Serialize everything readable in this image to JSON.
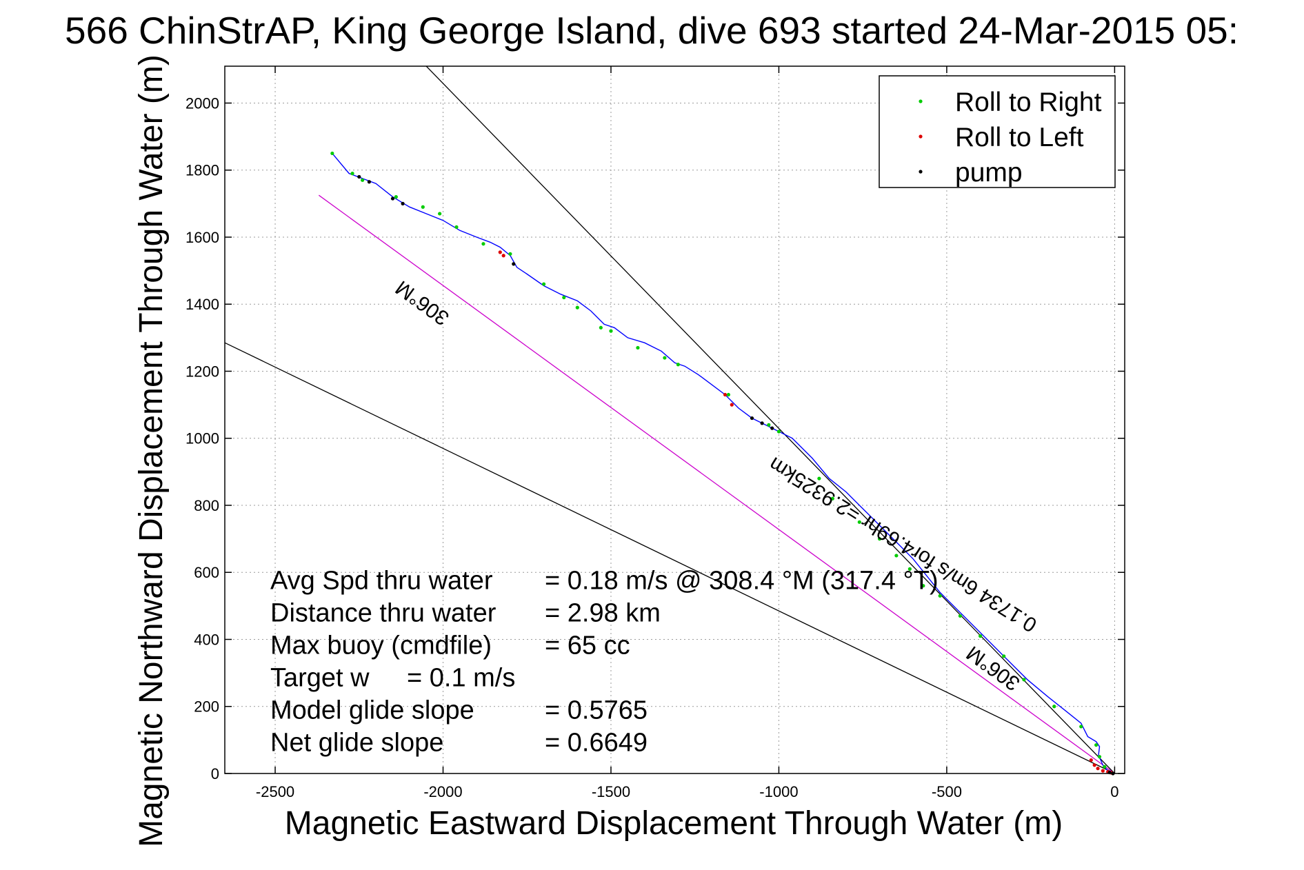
{
  "chart_data": {
    "type": "line",
    "title": "566 ChinStrAP, King George Island, dive 693 started 24-Mar-2015 05:",
    "xlabel": "Magnetic Eastward Displacement Through Water (m)",
    "ylabel": "Magnetic Northward Displacement Through Water (m)",
    "xlim": [
      -2650,
      30
    ],
    "ylim": [
      0,
      2110
    ],
    "xticks": [
      -2500,
      -2000,
      -1500,
      -1000,
      -500,
      0
    ],
    "yticks": [
      0,
      200,
      400,
      600,
      800,
      1000,
      1200,
      1400,
      1600,
      1800,
      2000
    ],
    "grid": true,
    "legend": {
      "placement": "top-right",
      "entries": [
        {
          "label": "Roll to Right",
          "color": "#00cc00"
        },
        {
          "label": "Roll to Left",
          "color": "#dd0000"
        },
        {
          "label": "pump",
          "color": "#000000"
        }
      ]
    },
    "track": {
      "name": "glider track",
      "color": "#0000ff",
      "x": [
        0,
        -20,
        -35,
        -48,
        -45,
        -55,
        -80,
        -100,
        -150,
        -200,
        -260,
        -320,
        -380,
        -420,
        -480,
        -520,
        -560,
        -600,
        -640,
        -680,
        -720,
        -760,
        -800,
        -850,
        -900,
        -960,
        -1000,
        -1040,
        -1080,
        -1120,
        -1160,
        -1200,
        -1240,
        -1280,
        -1310,
        -1350,
        -1400,
        -1450,
        -1490,
        -1520,
        -1560,
        -1600,
        -1650,
        -1700,
        -1750,
        -1780,
        -1800,
        -1830,
        -1860,
        -1900,
        -1950,
        -2000,
        -2050,
        -2100,
        -2150,
        -2200,
        -2240,
        -2280,
        -2330
      ],
      "y": [
        0,
        8,
        25,
        55,
        80,
        95,
        110,
        150,
        190,
        230,
        280,
        340,
        400,
        440,
        500,
        540,
        590,
        640,
        680,
        720,
        760,
        800,
        840,
        880,
        940,
        1000,
        1020,
        1040,
        1060,
        1090,
        1130,
        1160,
        1190,
        1215,
        1225,
        1260,
        1285,
        1300,
        1330,
        1340,
        1380,
        1410,
        1430,
        1455,
        1490,
        1510,
        1545,
        1570,
        1585,
        1600,
        1620,
        1650,
        1670,
        1690,
        1720,
        1760,
        1775,
        1790,
        1850
      ]
    },
    "roll_right_points": {
      "x": [
        -30,
        -45,
        -55,
        -100,
        -180,
        -270,
        -330,
        -400,
        -460,
        -520,
        -570,
        -610,
        -650,
        -700,
        -760,
        -840,
        -880,
        -1000,
        -1030,
        -1150,
        -1300,
        -1340,
        -1420,
        -1500,
        -1530,
        -1600,
        -1640,
        -1700,
        -1800,
        -1880,
        -1960,
        -2010,
        -2060,
        -2140,
        -2240,
        -2270,
        -2330
      ],
      "y": [
        20,
        50,
        85,
        140,
        200,
        280,
        350,
        410,
        470,
        530,
        560,
        610,
        650,
        700,
        750,
        820,
        880,
        1020,
        1040,
        1130,
        1220,
        1240,
        1270,
        1320,
        1330,
        1390,
        1420,
        1460,
        1550,
        1580,
        1630,
        1670,
        1690,
        1720,
        1770,
        1790,
        1850
      ]
    },
    "roll_left_points": {
      "x": [
        -10,
        -20,
        -35,
        -50,
        -60,
        -70,
        -1140,
        -1160,
        -1820,
        -1830
      ],
      "y": [
        2,
        5,
        8,
        15,
        25,
        40,
        1100,
        1130,
        1545,
        1555
      ]
    },
    "pump_points": {
      "x": [
        -5,
        -15,
        -1020,
        -1050,
        -1080,
        -1790,
        -2120,
        -2150,
        -2220,
        -2250
      ],
      "y": [
        0,
        3,
        1030,
        1045,
        1060,
        1520,
        1700,
        1715,
        1765,
        1780
      ]
    },
    "reference_lines": [
      {
        "name": "heading-line-upper",
        "color": "#000000",
        "x": [
          0,
          -2050
        ],
        "y": [
          0,
          2110
        ],
        "label": "306°M",
        "label_anchor": [
          -350,
          330
        ],
        "rotation_deg": 36
      },
      {
        "name": "heading-line-magenta",
        "color": "#cc00cc",
        "x": [
          0,
          -2370
        ],
        "y": [
          0,
          1725
        ],
        "label": "306°M",
        "label_anchor": [
          -2050,
          1420
        ],
        "rotation_deg": 36
      },
      {
        "name": "heading-line-lower",
        "color": "#000000",
        "x": [
          0,
          -2650
        ],
        "y": [
          0,
          1285
        ],
        "label": "",
        "label_anchor": null,
        "rotation_deg": 0
      }
    ],
    "current_label": {
      "text": "0.1734 6m/s for4.69hr =2.9325km",
      "anchor": [
        -620,
        700
      ],
      "rotation_deg": 32
    },
    "annotations": [
      {
        "label": "Avg Spd thru water",
        "value": "=  0.18 m/s @  308.4 °M (317.4 °T)"
      },
      {
        "label": "Distance thru water",
        "value": "=  2.98 km"
      },
      {
        "label": "Max buoy (cmdfile)",
        "value": "= 65 cc"
      },
      {
        "label": "Target w",
        "value": "= 0.1 m/s"
      },
      {
        "label": "Model glide slope",
        "value": "= 0.5765"
      },
      {
        "label": "Net glide slope",
        "value": "= 0.6649"
      }
    ]
  }
}
